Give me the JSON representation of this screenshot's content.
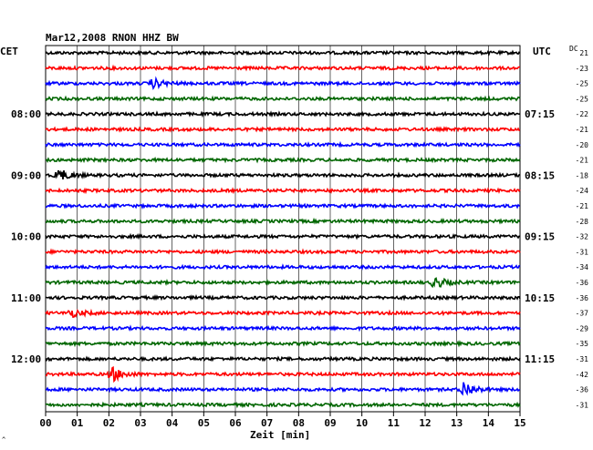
{
  "header": {
    "title": "Mar12,2008   RNON HHZ BW",
    "left_label": "CET",
    "right_label": "UTC",
    "dc_label": "DC",
    "corner_mark": "^"
  },
  "colors": {
    "cycle": [
      "#000000",
      "#ff0000",
      "#0000ff",
      "#006600"
    ],
    "grid": "#000000"
  },
  "chart_data": {
    "type": "line",
    "title": "Mar12,2008   RNON HHZ BW",
    "xlabel": "Zeit [min]",
    "ylabel": "",
    "x_range": [
      0,
      15
    ],
    "x_ticks": [
      "00",
      "01",
      "02",
      "03",
      "04",
      "05",
      "06",
      "07",
      "08",
      "09",
      "10",
      "11",
      "12",
      "13",
      "14",
      "15"
    ],
    "grid": true,
    "trace_count": 24,
    "left_time_labels": [
      {
        "trace": 4,
        "text": "08:00"
      },
      {
        "trace": 8,
        "text": "09:00"
      },
      {
        "trace": 12,
        "text": "10:00"
      },
      {
        "trace": 16,
        "text": "11:00"
      },
      {
        "trace": 20,
        "text": "12:00"
      }
    ],
    "right_time_labels": [
      {
        "trace": 4,
        "text": "07:15"
      },
      {
        "trace": 8,
        "text": "08:15"
      },
      {
        "trace": 12,
        "text": "09:15"
      },
      {
        "trace": 16,
        "text": "10:15"
      },
      {
        "trace": 20,
        "text": "11:15"
      }
    ],
    "dc_offsets": [
      21,
      -23,
      -25,
      -25,
      -22,
      -21,
      -20,
      -21,
      -18,
      -24,
      -21,
      -28,
      -32,
      -31,
      -34,
      -36,
      -36,
      -37,
      -29,
      -35,
      -31,
      -42,
      -36,
      -31
    ],
    "events": [
      {
        "trace": 2,
        "minute": 3.4,
        "amplitude": 1.6
      },
      {
        "trace": 8,
        "minute": 0.4,
        "amplitude": 2.2
      },
      {
        "trace": 15,
        "minute": 12.3,
        "amplitude": 2.0
      },
      {
        "trace": 17,
        "minute": 0.8,
        "amplitude": 1.4
      },
      {
        "trace": 21,
        "minute": 2.1,
        "amplitude": 2.6
      },
      {
        "trace": 22,
        "minute": 13.2,
        "amplitude": 3.0
      }
    ]
  }
}
